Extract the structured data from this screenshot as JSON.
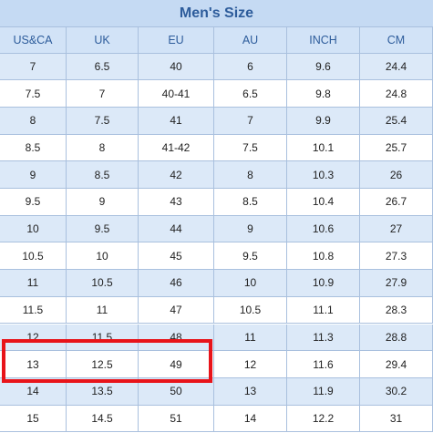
{
  "table": {
    "title": "Men's Size",
    "header": [
      "US&CA",
      "UK",
      "EU",
      "AU",
      "INCH",
      "CM"
    ],
    "rows": [
      [
        "7",
        "6.5",
        "40",
        "6",
        "9.6",
        "24.4"
      ],
      [
        "7.5",
        "7",
        "40-41",
        "6.5",
        "9.8",
        "24.8"
      ],
      [
        "8",
        "7.5",
        "41",
        "7",
        "9.9",
        "25.4"
      ],
      [
        "8.5",
        "8",
        "41-42",
        "7.5",
        "10.1",
        "25.7"
      ],
      [
        "9",
        "8.5",
        "42",
        "8",
        "10.3",
        "26"
      ],
      [
        "9.5",
        "9",
        "43",
        "8.5",
        "10.4",
        "26.7"
      ],
      [
        "10",
        "9.5",
        "44",
        "9",
        "10.6",
        "27"
      ],
      [
        "10.5",
        "10",
        "45",
        "9.5",
        "10.8",
        "27.3"
      ],
      [
        "11",
        "10.5",
        "46",
        "10",
        "10.9",
        "27.9"
      ],
      [
        "11.5",
        "11",
        "47",
        "10.5",
        "11.1",
        "28.3"
      ],
      [
        "12",
        "11.5",
        "48",
        "11",
        "11.3",
        "28.8"
      ],
      [
        "13",
        "12.5",
        "49",
        "12",
        "11.6",
        "29.4"
      ],
      [
        "14",
        "13.5",
        "50",
        "13",
        "11.9",
        "30.2"
      ],
      [
        "15",
        "14.5",
        "51",
        "14",
        "12.2",
        "31"
      ]
    ]
  }
}
